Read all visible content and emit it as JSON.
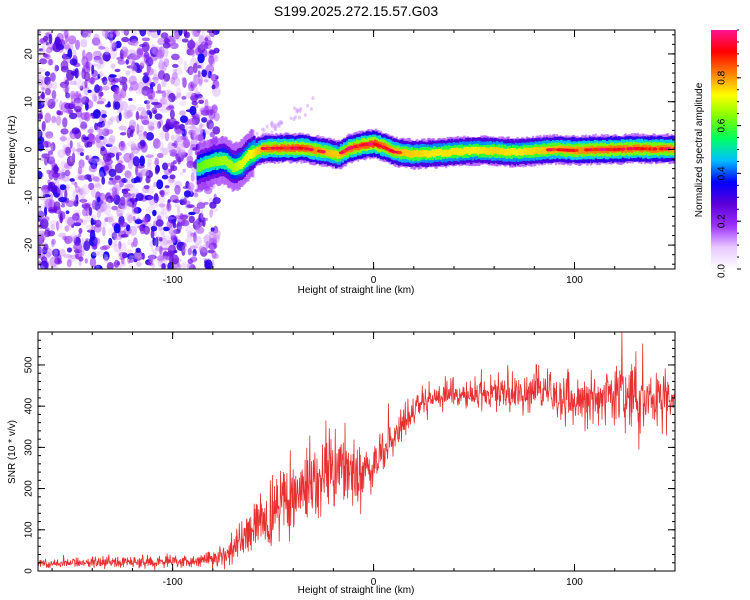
{
  "figure_title": "S199.2025.272.15.57.G03",
  "chart_data": [
    {
      "type": "heatmap",
      "title": "S199.2025.272.15.57.G03",
      "xlabel": "Height of straight line (km)",
      "ylabel": "Frequency (Hz)",
      "xlim": [
        -167,
        150
      ],
      "ylim": [
        -25,
        25
      ],
      "xticks": [
        -100,
        0,
        100
      ],
      "yticks": [
        -20,
        -10,
        0,
        10,
        20
      ],
      "colorbar": {
        "label": "Normalized spectral amplitude",
        "range": [
          0.0,
          1.0
        ],
        "ticks": [
          "0.0",
          "0.2",
          "0.4",
          "0.6",
          "0.8"
        ],
        "colors": [
          "#ffffff",
          "#e8c8ff",
          "#9b30ff",
          "#5a00d8",
          "#0000ff",
          "#00c0ff",
          "#00ff60",
          "#80ff00",
          "#ffff00",
          "#ff8000",
          "#ff0000",
          "#ff1493"
        ]
      },
      "noise_region_x": [
        -167,
        -82
      ],
      "ridge": {
        "x": [
          -88,
          -80,
          -75,
          -70,
          -66,
          -62,
          -55,
          -45,
          -35,
          -25,
          -18,
          -12,
          -5,
          0,
          5,
          10,
          20,
          30,
          40,
          50,
          60,
          70,
          80,
          90,
          100,
          110,
          120,
          130,
          140,
          150
        ],
        "freq": [
          -3.8,
          -2.5,
          -2.2,
          -3.8,
          -3.0,
          -1.0,
          0.2,
          0.3,
          0.3,
          -0.5,
          -1.2,
          0.3,
          1.0,
          1.2,
          0.5,
          -0.5,
          -1.0,
          -0.8,
          -0.5,
          -0.2,
          -0.3,
          -0.6,
          -0.3,
          0.0,
          -0.2,
          0.0,
          0.0,
          0.2,
          0.1,
          0.2
        ],
        "amplitude": [
          0.35,
          0.45,
          0.5,
          0.5,
          0.6,
          0.65,
          0.85,
          0.92,
          0.95,
          0.8,
          0.75,
          0.9,
          0.95,
          1.0,
          0.9,
          0.8,
          0.75,
          0.7,
          0.72,
          0.7,
          0.75,
          0.7,
          0.75,
          0.8,
          0.85,
          0.9,
          0.92,
          0.9,
          0.9,
          0.85
        ]
      }
    },
    {
      "type": "line",
      "xlabel": "Height of straight line (km)",
      "ylabel": "SNR (10 * v/v)",
      "xlim": [
        -167,
        150
      ],
      "ylim": [
        0,
        580
      ],
      "xticks": [
        -100,
        0,
        100
      ],
      "yticks": [
        0,
        100,
        200,
        300,
        400,
        500
      ],
      "color": "#e83030",
      "series": [
        {
          "name": "SNR",
          "x": [
            -167,
            -150,
            -130,
            -110,
            -90,
            -80,
            -75,
            -70,
            -65,
            -60,
            -55,
            -50,
            -45,
            -40,
            -35,
            -30,
            -25,
            -20,
            -15,
            -10,
            -5,
            0,
            5,
            10,
            15,
            20,
            25,
            30,
            40,
            50,
            60,
            70,
            80,
            90,
            100,
            110,
            120,
            130,
            140,
            150
          ],
          "values": [
            18,
            20,
            22,
            22,
            25,
            30,
            40,
            55,
            75,
            95,
            120,
            140,
            160,
            180,
            200,
            215,
            230,
            250,
            265,
            235,
            230,
            260,
            290,
            320,
            350,
            385,
            410,
            420,
            430,
            430,
            430,
            432,
            435,
            430,
            420,
            420,
            425,
            420,
            415,
            420
          ],
          "spread": [
            8,
            10,
            12,
            12,
            14,
            16,
            22,
            30,
            40,
            50,
            60,
            65,
            70,
            75,
            75,
            75,
            80,
            80,
            85,
            90,
            60,
            45,
            40,
            35,
            35,
            35,
            30,
            30,
            32,
            32,
            34,
            36,
            40,
            45,
            50,
            55,
            60,
            60,
            55,
            55
          ]
        }
      ]
    }
  ]
}
